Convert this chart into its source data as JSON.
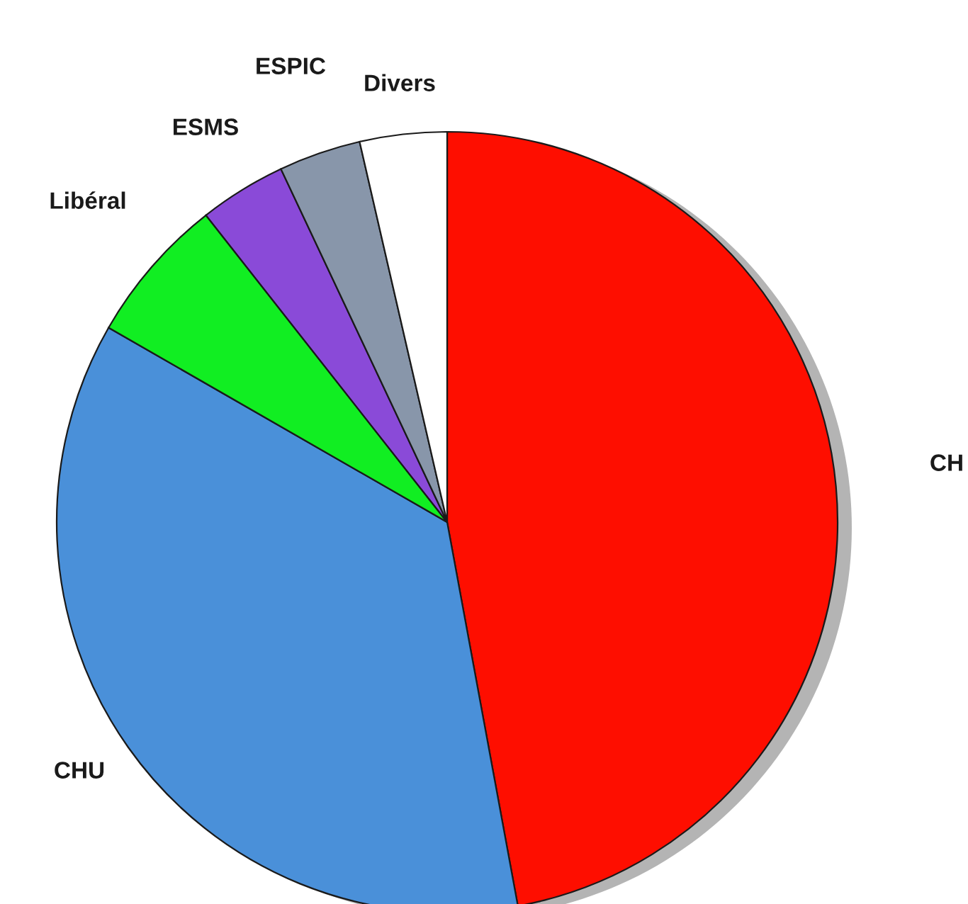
{
  "chart_data": {
    "type": "pie",
    "categories": [
      "CH",
      "CHU",
      "Libéral",
      "ESMS",
      "ESPIC",
      "Divers"
    ],
    "values": [
      47.1,
      36.2,
      6.1,
      3.6,
      3.4,
      3.6
    ],
    "colors": [
      "#fe0e00",
      "#4a90d9",
      "#11ee22",
      "#8a4ad8",
      "#8896aa",
      "#ffffff"
    ]
  }
}
